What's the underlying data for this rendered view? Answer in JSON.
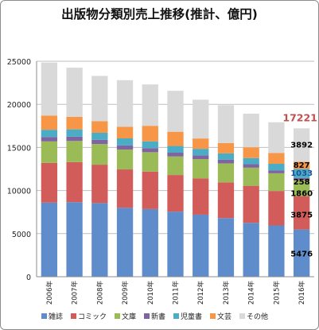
{
  "chart_data": {
    "type": "bar",
    "stacked": true,
    "title": "出版物分類別売上推移(推計、億円)",
    "categories": [
      "2006年",
      "2007年",
      "2008年",
      "2009年",
      "2010年",
      "2011年",
      "2012年",
      "2013年",
      "2014年",
      "2015年",
      "2016年"
    ],
    "ylim": [
      0,
      25000
    ],
    "yticks": [
      0,
      5000,
      10000,
      15000,
      20000,
      25000
    ],
    "grid": true,
    "legend": "bottom",
    "series": [
      {
        "name": "雑誌",
        "color": "#5f8ccb",
        "values": [
          8600,
          8650,
          8550,
          8000,
          7850,
          7550,
          7200,
          6800,
          6250,
          5950,
          5476
        ]
      },
      {
        "name": "コミック",
        "color": "#d25c5a",
        "values": [
          4600,
          4650,
          4450,
          4450,
          4350,
          4250,
          4200,
          4150,
          4300,
          4000,
          3875
        ]
      },
      {
        "name": "文庫",
        "color": "#9bbb57",
        "values": [
          2500,
          2450,
          2400,
          2300,
          2250,
          2150,
          2250,
          2200,
          2100,
          2050,
          1860
        ]
      },
      {
        "name": "新書",
        "color": "#8064a2",
        "values": [
          500,
          500,
          480,
          480,
          460,
          440,
          430,
          420,
          400,
          320,
          258
        ]
      },
      {
        "name": "児童書",
        "color": "#4bacc6",
        "values": [
          850,
          850,
          820,
          820,
          800,
          780,
          760,
          740,
          720,
          780,
          1033
        ]
      },
      {
        "name": "文芸",
        "color": "#f79646",
        "values": [
          1650,
          1450,
          1350,
          1350,
          1800,
          1650,
          1200,
          1200,
          1250,
          1250,
          827
        ]
      },
      {
        "name": "その他",
        "color": "#d9d9d9",
        "values": [
          6150,
          5700,
          5250,
          5400,
          4800,
          4750,
          4500,
          4390,
          3900,
          3570,
          3892
        ]
      }
    ],
    "annotations": [
      {
        "label": "17221",
        "color": "#c0504d"
      },
      {
        "label": "3892",
        "color": "#000000"
      },
      {
        "label": "827",
        "color": "#000000"
      },
      {
        "label": "1033",
        "color": "#1f4e9a"
      },
      {
        "label": "258",
        "color": "#000000"
      },
      {
        "label": "1860",
        "color": "#000000"
      },
      {
        "label": "3875",
        "color": "#000000"
      },
      {
        "label": "5476",
        "color": "#000000"
      }
    ]
  }
}
